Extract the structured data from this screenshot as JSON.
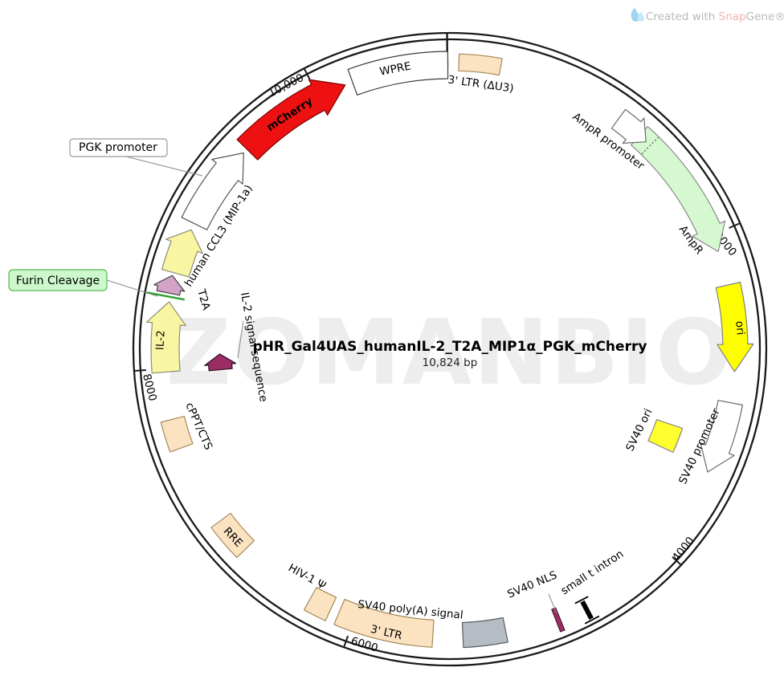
{
  "watermark": "ZOMANBIO",
  "credit": {
    "prefix": "Created with ",
    "snap": "Snap",
    "gene": "Gene®"
  },
  "plasmid": {
    "name": "pHR_Gal4UAS_humanIL-2_T2A_MIP1α_PGK_mCherry",
    "size": "10,824 bp"
  },
  "ticks": [
    {
      "label": "2000"
    },
    {
      "label": "4000"
    },
    {
      "label": "6000"
    },
    {
      "label": "8000"
    },
    {
      "label": "10,000"
    }
  ],
  "features": [
    {
      "id": "ltr3-du3",
      "label": "3' LTR (ΔU3)",
      "fill": "#fbe3c2",
      "stroke": "#a58858"
    },
    {
      "id": "ampr",
      "label": "AmpR",
      "fill": "#d6f8d0",
      "stroke": "#8a8a8a"
    },
    {
      "id": "ampr-promoter",
      "label": "AmpR promoter",
      "fill": "#ffffff",
      "stroke": "#6a6a6a"
    },
    {
      "id": "ori",
      "label": "ori",
      "fill": "#fffe00",
      "stroke": "#808080"
    },
    {
      "id": "sv40-promoter",
      "label": "SV40 promoter",
      "fill": "#ffffff",
      "stroke": "#6a6a6a"
    },
    {
      "id": "sv40-ori",
      "label": "SV40 ori",
      "fill": "#fffe2e",
      "stroke": "#888888"
    },
    {
      "id": "small-t-intron",
      "label": "small t intron",
      "fill": "#000000",
      "stroke": "#000000"
    },
    {
      "id": "sv40-nls",
      "label": "SV40 NLS",
      "fill": "#9b2d63",
      "stroke": "#2a0c22"
    },
    {
      "id": "sv40-polya",
      "label": "SV40 poly(A) signal",
      "fill": "#b6bcc4",
      "stroke": "#5a5f66"
    },
    {
      "id": "ltr3",
      "label": "3' LTR",
      "fill": "#fbe3c2",
      "stroke": "#a58858"
    },
    {
      "id": "hiv1-psi",
      "label": "HIV-1 Ψ",
      "fill": "#fbe3c2",
      "stroke": "#a58858"
    },
    {
      "id": "rre",
      "label": "RRE",
      "fill": "#fbe3c2",
      "stroke": "#a58858"
    },
    {
      "id": "cppt-cts",
      "label": "cPPT/CTS",
      "fill": "#fbe3c2",
      "stroke": "#a58858"
    },
    {
      "id": "il2",
      "label": "IL-2",
      "fill": "#f8f6a2",
      "stroke": "#8c8c7a"
    },
    {
      "id": "il2-signal",
      "label": "IL-2 signal sequence",
      "fill": "#9b2d63",
      "stroke": "#2a0c22"
    },
    {
      "id": "furin",
      "label": "Furin Cleavage",
      "fill": "#ccf8cc",
      "stroke": "#55b855",
      "line_color": "#2f9e2f"
    },
    {
      "id": "t2a",
      "label": "T2A",
      "fill": "#d2a3c6",
      "stroke": "#444444"
    },
    {
      "id": "ccl3",
      "label": "human CCL3 (MIP-1a)",
      "fill": "#f8f6a2",
      "stroke": "#8c8c7a"
    },
    {
      "id": "pgk",
      "label": "PGK promoter",
      "fill": "#ffffff",
      "stroke": "#555555",
      "box_fill": "#ffffff",
      "box_stroke": "#999999"
    },
    {
      "id": "mcherry",
      "label": "mCherry",
      "fill": "#ee1111",
      "stroke": "#7a0000",
      "label_fill": "#ffffff"
    },
    {
      "id": "wpre",
      "label": "WPRE",
      "fill": "#ffffff",
      "stroke": "#3a3a3a"
    }
  ]
}
